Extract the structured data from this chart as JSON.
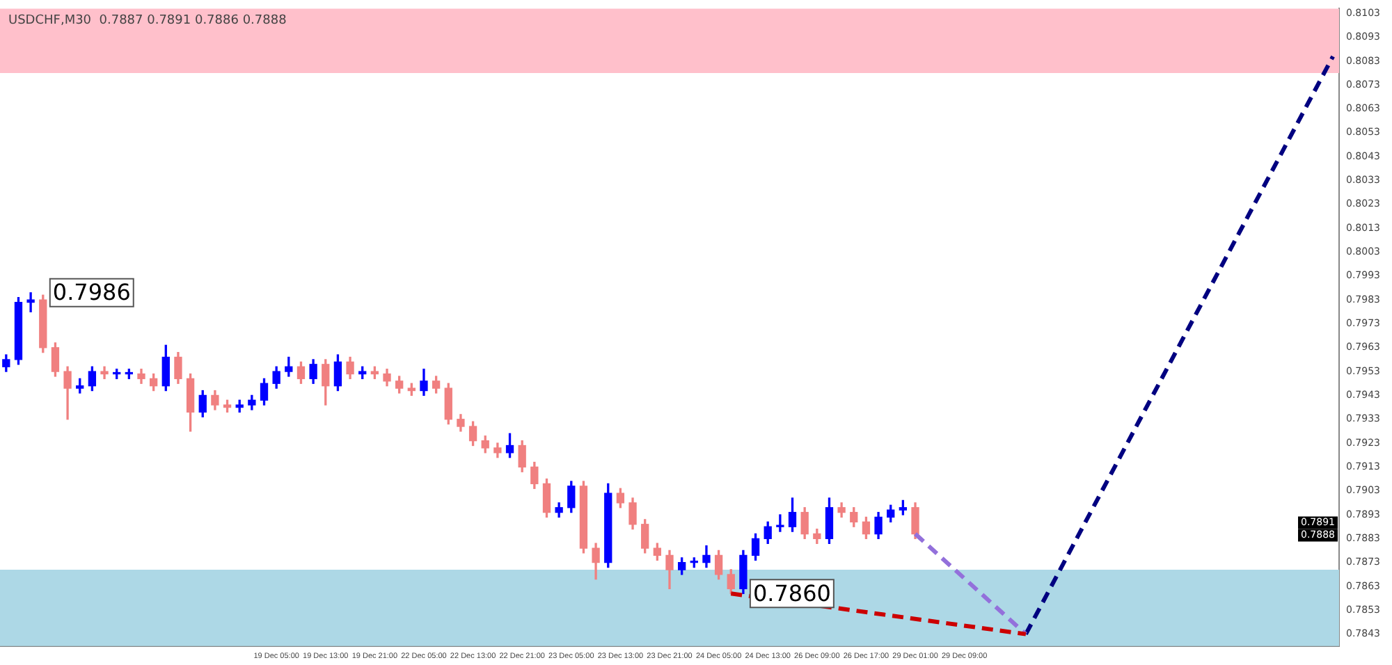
{
  "chart_data": {
    "type": "candlestick",
    "title": "USDCHF,M30  0.7887 0.7891 0.7886 0.7888",
    "categories": [
      null,
      null,
      null,
      null,
      null,
      null,
      null,
      null,
      null,
      null,
      null,
      null,
      null,
      null,
      null,
      null,
      null,
      null,
      null,
      null,
      null,
      null,
      "19 Dec 05:00",
      null,
      null,
      null,
      "19 Dec 13:00",
      null,
      null,
      null,
      "19 Dec 21:00",
      null,
      null,
      null,
      "22 Dec 05:00",
      null,
      null,
      null,
      "22 Dec 13:00",
      null,
      null,
      null,
      "22 Dec 21:00",
      null,
      null,
      null,
      "23 Dec 05:00",
      null,
      null,
      null,
      "23 Dec 13:00",
      null,
      null,
      null,
      "23 Dec 21:00",
      null,
      null,
      null,
      "24 Dec 05:00",
      null,
      null,
      null,
      "24 Dec 13:00",
      null,
      null,
      null,
      "26 Dec 09:00",
      null,
      null,
      null,
      "26 Dec 17:00",
      null,
      null,
      null,
      "29 Dec 01:00",
      null,
      null,
      null,
      "29 Dec 09:00",
      null,
      null,
      null,
      null,
      null,
      null,
      null,
      null,
      null,
      null,
      null,
      null,
      null,
      null,
      null,
      null,
      null,
      null,
      null,
      null,
      null,
      null,
      null,
      null,
      null,
      null,
      null,
      null,
      null,
      null
    ],
    "ohlc": [
      [
        0.7955,
        0.796,
        0.7953,
        0.7958
      ],
      [
        0.7958,
        0.7984,
        0.7956,
        0.7982
      ],
      [
        0.7982,
        0.7986,
        0.7978,
        0.7983
      ],
      [
        0.7983,
        0.7985,
        0.7961,
        0.7963
      ],
      [
        0.7963,
        0.7965,
        0.7951,
        0.7953
      ],
      [
        0.7953,
        0.7955,
        0.7933,
        0.7946
      ],
      [
        0.7946,
        0.795,
        0.7944,
        0.7947
      ],
      [
        0.7947,
        0.7955,
        0.7945,
        0.7953
      ],
      [
        0.7953,
        0.7955,
        0.795,
        0.7952
      ],
      [
        0.7952,
        0.7954,
        0.795,
        0.7952
      ],
      [
        0.7952,
        0.7954,
        0.795,
        0.7952
      ],
      [
        0.7952,
        0.7954,
        0.7948,
        0.795
      ],
      [
        0.795,
        0.7952,
        0.7945,
        0.7947
      ],
      [
        0.7947,
        0.7964,
        0.7945,
        0.7959
      ],
      [
        0.7959,
        0.7961,
        0.7948,
        0.795
      ],
      [
        0.795,
        0.7952,
        0.7928,
        0.7936
      ],
      [
        0.7936,
        0.7945,
        0.7934,
        0.7943
      ],
      [
        0.7943,
        0.7945,
        0.7937,
        0.7939
      ],
      [
        0.7939,
        0.7941,
        0.7936,
        0.7938
      ],
      [
        0.7938,
        0.7941,
        0.7936,
        0.7939
      ],
      [
        0.7939,
        0.7943,
        0.7937,
        0.7941
      ],
      [
        0.7941,
        0.795,
        0.7939,
        0.7948
      ],
      [
        0.7948,
        0.7955,
        0.7946,
        0.7953
      ],
      [
        0.7953,
        0.7959,
        0.7951,
        0.7955
      ],
      [
        0.7955,
        0.7957,
        0.7948,
        0.795
      ],
      [
        0.795,
        0.7958,
        0.7948,
        0.7956
      ],
      [
        0.7956,
        0.7958,
        0.7939,
        0.7947
      ],
      [
        0.7947,
        0.796,
        0.7945,
        0.7957
      ],
      [
        0.7957,
        0.7959,
        0.795,
        0.7952
      ],
      [
        0.7952,
        0.7955,
        0.795,
        0.7953
      ],
      [
        0.7953,
        0.7955,
        0.795,
        0.7952
      ],
      [
        0.7952,
        0.7954,
        0.7947,
        0.7949
      ],
      [
        0.7949,
        0.7951,
        0.7944,
        0.7946
      ],
      [
        0.7946,
        0.7948,
        0.7943,
        0.7945
      ],
      [
        0.7945,
        0.7954,
        0.7943,
        0.7949
      ],
      [
        0.7949,
        0.7951,
        0.7944,
        0.7946
      ],
      [
        0.7946,
        0.7948,
        0.7931,
        0.7933
      ],
      [
        0.7933,
        0.7935,
        0.7928,
        0.793
      ],
      [
        0.793,
        0.7932,
        0.7922,
        0.7924
      ],
      [
        0.7924,
        0.7926,
        0.7919,
        0.7921
      ],
      [
        0.7921,
        0.7923,
        0.7917,
        0.7919
      ],
      [
        0.7919,
        0.7927,
        0.7917,
        0.7922
      ],
      [
        0.7922,
        0.7924,
        0.7911,
        0.7913
      ],
      [
        0.7913,
        0.7915,
        0.7904,
        0.7906
      ],
      [
        0.7906,
        0.7908,
        0.7892,
        0.7894
      ],
      [
        0.7894,
        0.7898,
        0.7892,
        0.7896
      ],
      [
        0.7896,
        0.7907,
        0.7894,
        0.7905
      ],
      [
        0.7905,
        0.7907,
        0.7877,
        0.7879
      ],
      [
        0.7879,
        0.7881,
        0.7866,
        0.7873
      ],
      [
        0.7873,
        0.7906,
        0.7871,
        0.7902
      ],
      [
        0.7902,
        0.7904,
        0.7896,
        0.7898
      ],
      [
        0.7898,
        0.79,
        0.7887,
        0.7889
      ],
      [
        0.7889,
        0.7891,
        0.7877,
        0.7879
      ],
      [
        0.7879,
        0.7881,
        0.7874,
        0.7876
      ],
      [
        0.7876,
        0.7878,
        0.7862,
        0.787
      ],
      [
        0.787,
        0.7875,
        0.7868,
        0.7873
      ],
      [
        0.7873,
        0.7875,
        0.7871,
        0.7873
      ],
      [
        0.7873,
        0.788,
        0.7871,
        0.7876
      ],
      [
        0.7876,
        0.7878,
        0.7866,
        0.7868
      ],
      [
        0.7868,
        0.787,
        0.786,
        0.7862
      ],
      [
        0.7862,
        0.7878,
        0.786,
        0.7876
      ],
      [
        0.7876,
        0.7885,
        0.7874,
        0.7883
      ],
      [
        0.7883,
        0.789,
        0.7881,
        0.7888
      ],
      [
        0.7888,
        0.7893,
        0.7886,
        0.7888
      ],
      [
        0.7888,
        0.79,
        0.7886,
        0.7894
      ],
      [
        0.7894,
        0.7896,
        0.7883,
        0.7885
      ],
      [
        0.7885,
        0.7887,
        0.7881,
        0.7883
      ],
      [
        0.7883,
        0.79,
        0.7881,
        0.7896
      ],
      [
        0.7896,
        0.7898,
        0.7892,
        0.7894
      ],
      [
        0.7894,
        0.7896,
        0.7888,
        0.789
      ],
      [
        0.789,
        0.7892,
        0.7883,
        0.7885
      ],
      [
        0.7885,
        0.7894,
        0.7883,
        0.7892
      ],
      [
        0.7892,
        0.7897,
        0.789,
        0.7895
      ],
      [
        0.7895,
        0.7899,
        0.7893,
        0.7896
      ],
      [
        0.7896,
        0.7898,
        0.7883,
        0.7885
      ],
      null,
      null,
      null,
      null,
      null,
      null,
      null,
      null,
      null,
      null,
      null,
      null,
      null,
      null,
      null,
      null,
      null,
      null,
      null,
      null,
      null,
      null,
      null,
      null,
      null,
      null,
      null,
      null,
      null,
      null,
      null,
      null,
      null,
      null
    ],
    "colors": [
      "#0000ff",
      "#0000ff",
      "#0000ff",
      "#f08080",
      "#f08080",
      "#f08080",
      "#0000ff",
      "#0000ff",
      "#f08080",
      "#0000ff",
      "#0000ff",
      "#f08080",
      "#f08080",
      "#0000ff",
      "#f08080",
      "#f08080",
      "#0000ff",
      "#f08080",
      "#f08080",
      "#0000ff",
      "#0000ff",
      "#0000ff",
      "#0000ff",
      "#0000ff",
      "#f08080",
      "#0000ff",
      "#f08080",
      "#0000ff",
      "#f08080",
      "#0000ff",
      "#f08080",
      "#f08080",
      "#f08080",
      "#f08080",
      "#0000ff",
      "#f08080",
      "#f08080",
      "#f08080",
      "#f08080",
      "#f08080",
      "#f08080",
      "#0000ff",
      "#f08080",
      "#f08080",
      "#f08080",
      "#0000ff",
      "#0000ff",
      "#f08080",
      "#f08080",
      "#0000ff",
      "#f08080",
      "#f08080",
      "#f08080",
      "#f08080",
      "#f08080",
      "#0000ff",
      "#0000ff",
      "#0000ff",
      "#f08080",
      "#f08080",
      "#0000ff",
      "#0000ff",
      "#0000ff",
      "#0000ff",
      "#0000ff",
      "#f08080",
      "#f08080",
      "#0000ff",
      "#f08080",
      "#f08080",
      "#f08080",
      "#0000ff",
      "#0000ff",
      "#0000ff",
      "#f08080",
      null,
      null,
      null,
      null,
      null,
      null,
      null,
      null,
      null,
      null,
      null,
      null,
      null,
      null,
      null,
      null,
      null,
      null,
      null,
      null,
      null,
      null,
      null,
      null,
      null,
      null,
      null,
      null,
      null,
      null,
      null,
      null,
      null,
      null
    ],
    "series": [
      {
        "type": "line",
        "color": "#cc0000",
        "line_style": "dashed",
        "values": [
          null,
          null,
          null,
          null,
          null,
          null,
          null,
          null,
          null,
          null,
          null,
          null,
          null,
          null,
          null,
          null,
          null,
          null,
          null,
          null,
          null,
          null,
          null,
          null,
          null,
          null,
          null,
          null,
          null,
          null,
          null,
          null,
          null,
          null,
          null,
          null,
          null,
          null,
          null,
          null,
          null,
          null,
          null,
          null,
          null,
          null,
          null,
          null,
          null,
          null,
          null,
          null,
          null,
          null,
          null,
          null,
          null,
          null,
          null,
          0.786,
          null,
          null,
          null,
          null,
          null,
          null,
          null,
          null,
          null,
          null,
          null,
          null,
          null,
          null,
          null,
          null,
          null,
          null,
          null,
          null,
          null,
          null,
          null,
          0.7843,
          null,
          null,
          null,
          null,
          null,
          null,
          null,
          null,
          null,
          null,
          null,
          null,
          null,
          null,
          null,
          null,
          null,
          null,
          null,
          null,
          null,
          null,
          null,
          null,
          null
        ]
      },
      {
        "type": "line",
        "color": "#9370db",
        "line_style": "dashed",
        "values": [
          null,
          null,
          null,
          null,
          null,
          null,
          null,
          null,
          null,
          null,
          null,
          null,
          null,
          null,
          null,
          null,
          null,
          null,
          null,
          null,
          null,
          null,
          null,
          null,
          null,
          null,
          null,
          null,
          null,
          null,
          null,
          null,
          null,
          null,
          null,
          null,
          null,
          null,
          null,
          null,
          null,
          null,
          null,
          null,
          null,
          null,
          null,
          null,
          null,
          null,
          null,
          null,
          null,
          null,
          null,
          null,
          null,
          null,
          null,
          null,
          null,
          null,
          null,
          null,
          null,
          null,
          null,
          null,
          null,
          null,
          null,
          null,
          null,
          null,
          0.7885,
          null,
          null,
          null,
          null,
          null,
          null,
          null,
          null,
          0.7843,
          null,
          null,
          null,
          null,
          null,
          null,
          null,
          null,
          null,
          null,
          null,
          null,
          null,
          null,
          null,
          null,
          null,
          null,
          null,
          null,
          null,
          null,
          null,
          null,
          null
        ]
      },
      {
        "type": "line",
        "color": "#000080",
        "line_style": "dashed",
        "values": [
          null,
          null,
          null,
          null,
          null,
          null,
          null,
          null,
          null,
          null,
          null,
          null,
          null,
          null,
          null,
          null,
          null,
          null,
          null,
          null,
          null,
          null,
          null,
          null,
          null,
          null,
          null,
          null,
          null,
          null,
          null,
          null,
          null,
          null,
          null,
          null,
          null,
          null,
          null,
          null,
          null,
          null,
          null,
          null,
          null,
          null,
          null,
          null,
          null,
          null,
          null,
          null,
          null,
          null,
          null,
          null,
          null,
          null,
          null,
          null,
          null,
          null,
          null,
          null,
          null,
          null,
          null,
          null,
          null,
          null,
          null,
          null,
          null,
          null,
          null,
          null,
          null,
          null,
          null,
          null,
          null,
          null,
          null,
          0.7843,
          null,
          null,
          null,
          null,
          null,
          null,
          null,
          null,
          null,
          null,
          null,
          null,
          null,
          null,
          null,
          null,
          null,
          null,
          null,
          null,
          null,
          null,
          null,
          null,
          0.8085
        ]
      }
    ],
    "ylim": [
      0.7838,
      0.8105
    ],
    "yticks": [
      0.7843,
      0.7853,
      0.7863,
      0.7873,
      0.7883,
      0.7893,
      0.7903,
      0.7913,
      0.7923,
      0.7933,
      0.7943,
      0.7953,
      0.7963,
      0.7973,
      0.7983,
      0.7993,
      0.8003,
      0.8013,
      0.8023,
      0.8033,
      0.8043,
      0.8053,
      0.8063,
      0.8073,
      0.8083,
      0.8093,
      0.8103
    ],
    "bands": [
      {
        "axis": "y",
        "from": 0.8078,
        "to": 0.8105,
        "color": "#ffc0cb"
      },
      {
        "axis": "y",
        "from": 0.7838,
        "to": 0.787,
        "color": "#add8e6"
      }
    ],
    "annotations": [
      "0.7986",
      {
        "text": "0.7860",
        "y": 0.786
      },
      "0.7891",
      "0.7888"
    ],
    "grid": false,
    "legend": false
  }
}
